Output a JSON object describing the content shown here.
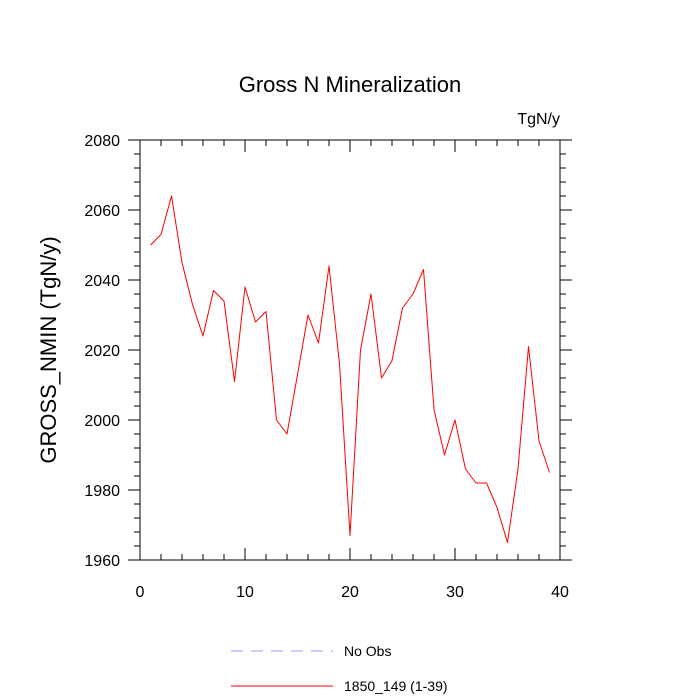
{
  "chart_data": {
    "type": "line",
    "title": "Gross N Mineralization",
    "units_label": "TgN/y",
    "xlabel": "",
    "ylabel": "GROSS_NMIN  (TgN/y)",
    "xlim": [
      0,
      40
    ],
    "ylim": [
      1960,
      2080
    ],
    "xticks": [
      0,
      10,
      20,
      30,
      40
    ],
    "yticks": [
      1960,
      1980,
      2000,
      2020,
      2040,
      2060,
      2080
    ],
    "grid": false,
    "legend_position": "bottom",
    "series": [
      {
        "name": "1850_149 (1-39)",
        "color": "#ff0000",
        "style": "solid",
        "x": [
          1,
          2,
          3,
          4,
          5,
          6,
          7,
          8,
          9,
          10,
          11,
          12,
          13,
          14,
          15,
          16,
          17,
          18,
          19,
          20,
          21,
          22,
          23,
          24,
          25,
          26,
          27,
          28,
          29,
          30,
          31,
          32,
          33,
          34,
          35,
          36,
          37,
          38,
          39
        ],
        "values": [
          2050,
          2053,
          2064,
          2045,
          2033,
          2024,
          2037,
          2034,
          2011,
          2038,
          2028,
          2031,
          2000,
          1996,
          2013,
          2030,
          2022,
          2044,
          2016,
          1967,
          2020,
          2036,
          2012,
          2017,
          2032,
          2036,
          2043,
          2003,
          1990,
          2000,
          1986,
          1982,
          1982,
          1975,
          1965,
          1986,
          2021,
          1994,
          1985
        ]
      }
    ],
    "legend": [
      {
        "label": "No Obs",
        "color": "#9999ff",
        "style": "dashed"
      },
      {
        "label": "1850_149 (1-39)",
        "color": "#ff0000",
        "style": "solid"
      }
    ]
  }
}
